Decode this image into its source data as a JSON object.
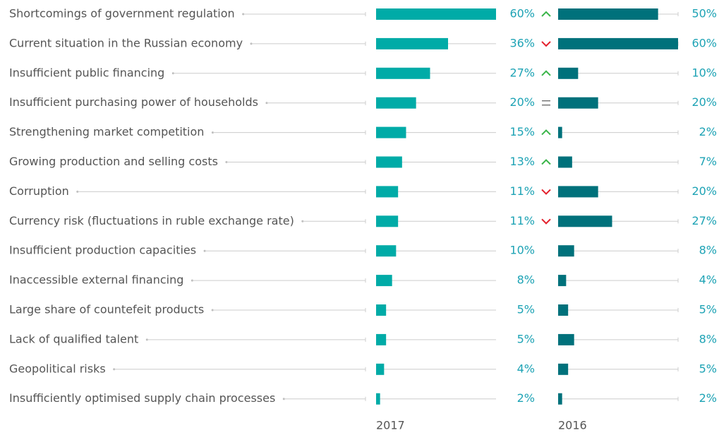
{
  "chart_data": {
    "type": "paired-bar",
    "categories": [
      "Shortcomings of government regulation",
      "Current situation in the Russian economy",
      "Insufficient public financing",
      "Insufficient purchasing power of households",
      "Strengthening market competition",
      "Growing production and selling costs",
      "Corruption",
      "Currency risk (fluctuations in ruble exchange rate)",
      "Insufficient production capacities",
      "Inaccessible external financing",
      "Large share of countefeit products",
      "Lack of qualified talent",
      "Geopolitical risks",
      "Insufficiently optimised supply chain processes"
    ],
    "series": [
      {
        "name": "2017",
        "color": "#00aba7",
        "values": [
          60,
          36,
          27,
          20,
          15,
          13,
          11,
          11,
          10,
          8,
          5,
          5,
          4,
          2
        ],
        "value_labels": [
          "60%",
          "36%",
          "27%",
          "20%",
          "15%",
          "13%",
          "11%",
          "11%",
          "10%",
          "8%",
          "5%",
          "5%",
          "4%",
          "2%"
        ]
      },
      {
        "name": "2016",
        "color": "#00717b",
        "values": [
          50,
          60,
          10,
          20,
          2,
          7,
          20,
          27,
          8,
          4,
          5,
          8,
          5,
          2
        ],
        "value_labels": [
          "50%",
          "60%",
          "10%",
          "20%",
          "2%",
          "7%",
          "20%",
          "27%",
          "8%",
          "4%",
          "5%",
          "8%",
          "5%",
          "2%"
        ]
      }
    ],
    "trends": [
      "up",
      "down",
      "up",
      "equal",
      "up",
      "up",
      "down",
      "down",
      null,
      null,
      null,
      null,
      null,
      null
    ],
    "trend_colors": {
      "up": "#3bb54a",
      "down": "#e3202c",
      "equal": "#777777"
    },
    "xlim": [
      0,
      60
    ]
  }
}
